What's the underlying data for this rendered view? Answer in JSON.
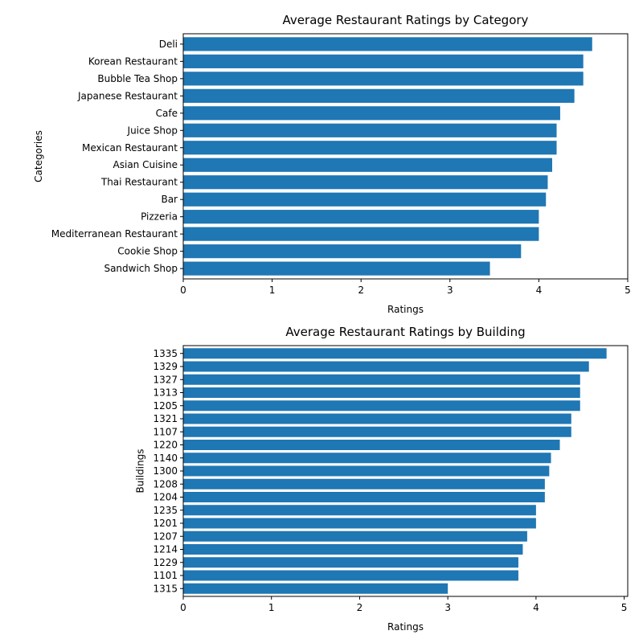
{
  "chart_data": [
    {
      "type": "bar",
      "orientation": "horizontal",
      "title": "Average Restaurant Ratings by Category",
      "xlabel": "Ratings",
      "ylabel": "Categories",
      "xlim": [
        0,
        5
      ],
      "x_ticks": [
        "0",
        "1",
        "2",
        "3",
        "4",
        "5"
      ],
      "grid": false,
      "bar_color": "#1f77b4",
      "categories": [
        "Deli",
        "Korean Restaurant",
        "Bubble Tea Shop",
        "Japanese Restaurant",
        "Cafe",
        "Juice Shop",
        "Mexican Restaurant",
        "Asian Cuisine ",
        "Thai Restaurant",
        "Bar",
        "Pizzeria",
        "Mediterranean Restaurant",
        "Cookie Shop",
        "Sandwich Shop"
      ],
      "values": [
        4.6,
        4.5,
        4.5,
        4.4,
        4.24,
        4.2,
        4.2,
        4.15,
        4.1,
        4.08,
        4.0,
        4.0,
        3.8,
        3.45
      ]
    },
    {
      "type": "bar",
      "orientation": "horizontal",
      "title": "Average Restaurant Ratings by Building",
      "xlabel": "Ratings",
      "ylabel": "Buildings",
      "xlim": [
        0,
        5.04
      ],
      "x_ticks": [
        "0",
        "1",
        "2",
        "3",
        "4",
        "5"
      ],
      "grid": false,
      "bar_color": "#1f77b4",
      "categories": [
        "1335",
        "1329",
        "1327",
        "1313",
        "1205",
        "1321",
        "1107",
        "1220",
        "1140",
        "1300",
        "1208",
        "1204",
        "1235",
        "1201",
        "1207",
        "1214",
        "1229",
        "1101",
        "1315"
      ],
      "values": [
        4.8,
        4.6,
        4.5,
        4.5,
        4.5,
        4.4,
        4.4,
        4.27,
        4.17,
        4.15,
        4.1,
        4.1,
        4.0,
        4.0,
        3.9,
        3.85,
        3.8,
        3.8,
        3.0
      ]
    }
  ]
}
